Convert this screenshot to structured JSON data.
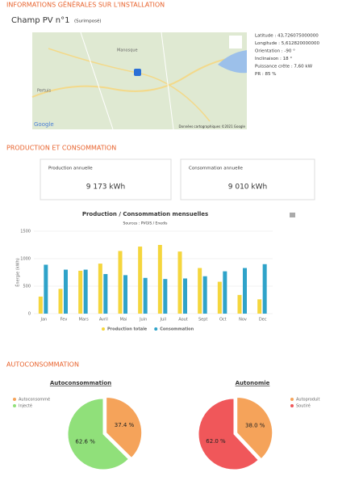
{
  "header": {
    "title": "INFORMATIONS GÉNÉRALES SUR L'INSTALLATION"
  },
  "installation": {
    "name": "Champ PV n°1",
    "kind": "(Surimposé)",
    "details": [
      "Latitude : 43,726075000000",
      "Longitude : 5,612820000000",
      "Orientation : -90 °",
      "Inclinaison : 18 °",
      "Puissance crête : 7,60 kW",
      "PR : 85 %"
    ]
  },
  "map": {
    "labels": [
      "Manosque",
      "Pertuis",
      "Google",
      "Données cartographiques ©2021 Google"
    ]
  },
  "production": {
    "title": "PRODUCTION ET CONSOMMATION",
    "cards": [
      {
        "label": "Production annuelle",
        "value": "9 173 kWh"
      },
      {
        "label": "Consommation annuelle",
        "value": "9 010 kWh"
      }
    ]
  },
  "autoconsommation": {
    "title": "AUTOCONSOMMATION"
  },
  "chart_data": [
    {
      "type": "bar",
      "title": "Production / Consommation mensuelles",
      "subtitle": "Sources : PVGIS / Enedis",
      "y_label": "Énergie (kWh)",
      "categories": [
        "Jan",
        "Fev",
        "Mars",
        "Avril",
        "Mai",
        "Juin",
        "Juil",
        "Aout",
        "Sept",
        "Oct",
        "Nov",
        "Dec"
      ],
      "series": [
        {
          "name": "Production totale",
          "color": "#f5d63d",
          "values": [
            310,
            450,
            780,
            910,
            1140,
            1220,
            1250,
            1130,
            830,
            580,
            340,
            260
          ]
        },
        {
          "name": "Consommation",
          "color": "#2fa3c9",
          "values": [
            890,
            800,
            800,
            720,
            700,
            650,
            630,
            640,
            680,
            770,
            830,
            900
          ]
        }
      ],
      "ylim": [
        0,
        1500
      ],
      "yticks": [
        0,
        500,
        1000,
        1500
      ],
      "grid": true,
      "legend": "bottom"
    },
    {
      "type": "pie",
      "title": "Autoconsommation",
      "categories": [
        "Autoconsommé",
        "Injecté"
      ],
      "values": [
        37.4,
        62.6
      ],
      "value_labels": [
        "37.4 %",
        "62.6 %"
      ],
      "colors": [
        "#f5a35a",
        "#90e07a"
      ]
    },
    {
      "type": "pie",
      "title": "Autonomie",
      "categories": [
        "Autoproduit",
        "Soutiré"
      ],
      "values": [
        38.0,
        62.0
      ],
      "value_labels": [
        "38.0 %",
        "62.0 %"
      ],
      "colors": [
        "#f5a35a",
        "#f0575a"
      ]
    }
  ]
}
